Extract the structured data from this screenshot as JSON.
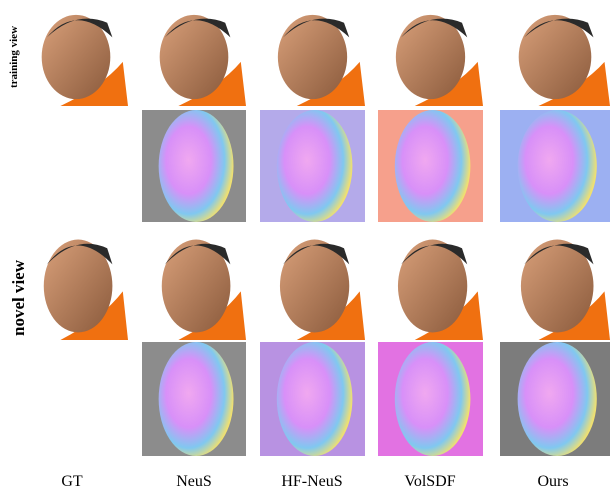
{
  "figure": {
    "row_labels": [
      "training view",
      "novel view"
    ],
    "column_labels": [
      "GT",
      "NeuS",
      "HF-NeuS",
      "VolSDF",
      "Ours"
    ]
  }
}
